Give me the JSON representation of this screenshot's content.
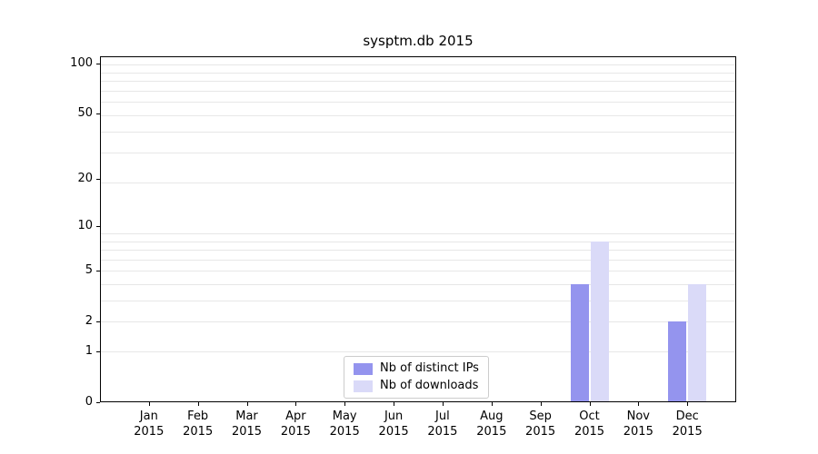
{
  "chart_data": {
    "type": "bar",
    "title": "sysptm.db 2015",
    "x_tick_year": "2015",
    "categories": [
      "Jan",
      "Feb",
      "Mar",
      "Apr",
      "May",
      "Jun",
      "Jul",
      "Aug",
      "Sep",
      "Oct",
      "Nov",
      "Dec"
    ],
    "series": [
      {
        "name": "Nb of distinct IPs",
        "color": "#9494ee",
        "values": [
          0,
          0,
          0,
          0,
          0,
          0,
          0,
          0,
          0,
          4,
          0,
          2
        ]
      },
      {
        "name": "Nb of downloads",
        "color": "#dadaf8",
        "values": [
          0,
          0,
          0,
          0,
          0,
          0,
          0,
          0,
          0,
          8,
          0,
          4
        ]
      }
    ],
    "yticks": [
      0,
      1,
      2,
      5,
      10,
      20,
      50,
      100
    ],
    "scale": "log1p",
    "ylim": [
      0,
      110
    ],
    "grid": {
      "horizontal_minor": true,
      "color": "#e7e7e7"
    },
    "legend_position": "lower-center"
  }
}
